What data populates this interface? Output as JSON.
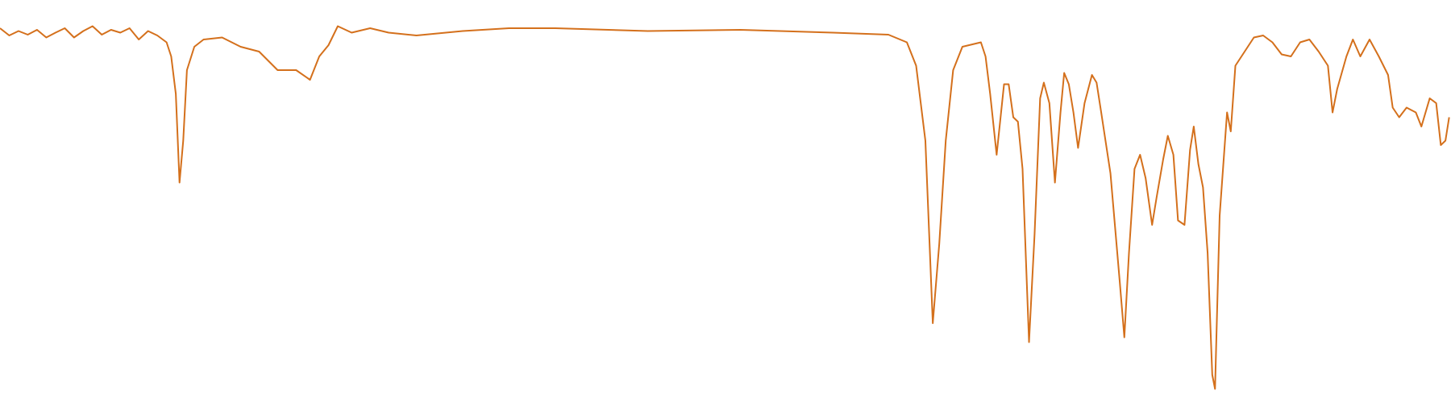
{
  "chart_data": {
    "type": "line",
    "color": "#d4701c",
    "xlim": [
      0,
      1568
    ],
    "ylim": [
      0,
      100
    ],
    "x": [
      0,
      10,
      20,
      30,
      40,
      50,
      60,
      70,
      80,
      90,
      100,
      110,
      120,
      130,
      140,
      150,
      160,
      170,
      180,
      185,
      190,
      194,
      198,
      202,
      210,
      220,
      240,
      260,
      280,
      300,
      320,
      335,
      345,
      355,
      365,
      380,
      400,
      420,
      450,
      500,
      550,
      600,
      700,
      800,
      900,
      960,
      980,
      990,
      1000,
      1008,
      1015,
      1022,
      1030,
      1040,
      1060,
      1065,
      1070,
      1077,
      1085,
      1090,
      1095,
      1100,
      1105,
      1112,
      1118,
      1124,
      1128,
      1134,
      1140,
      1146,
      1150,
      1155,
      1160,
      1165,
      1172,
      1180,
      1185,
      1190,
      1200,
      1210,
      1215,
      1220,
      1226,
      1232,
      1238,
      1245,
      1250,
      1257,
      1262,
      1268,
      1273,
      1280,
      1286,
      1290,
      1295,
      1300,
      1305,
      1310,
      1313,
      1318,
      1326,
      1330,
      1335,
      1345,
      1355,
      1365,
      1375,
      1385,
      1395,
      1405,
      1415,
      1425,
      1435,
      1440,
      1445,
      1455,
      1462,
      1470,
      1480,
      1490,
      1500,
      1505,
      1512,
      1520,
      1530,
      1536,
      1545,
      1552,
      1557,
      1562,
      1566
    ],
    "values": [
      93.0,
      91.2,
      92.3,
      91.4,
      92.6,
      90.7,
      91.9,
      93.0,
      90.7,
      92.3,
      93.5,
      91.4,
      92.6,
      91.9,
      93.0,
      90.2,
      92.3,
      91.2,
      89.5,
      86.0,
      76.7,
      54.7,
      65.1,
      82.6,
      88.4,
      90.2,
      90.7,
      88.4,
      87.2,
      82.6,
      82.6,
      80.2,
      86.0,
      88.8,
      93.5,
      91.9,
      93.0,
      91.9,
      91.2,
      92.3,
      93.0,
      93.0,
      92.3,
      92.6,
      91.9,
      91.4,
      89.5,
      83.7,
      65.1,
      19.8,
      39.5,
      65.1,
      82.6,
      88.4,
      89.5,
      86.0,
      76.7,
      61.6,
      79.1,
      79.1,
      70.9,
      69.8,
      58.1,
      15.1,
      41.9,
      75.6,
      79.5,
      74.4,
      54.7,
      72.1,
      81.9,
      79.1,
      72.1,
      63.3,
      74.4,
      81.4,
      79.5,
      72.1,
      57.0,
      30.2,
      16.3,
      37.2,
      58.1,
      61.6,
      55.8,
      44.2,
      51.2,
      60.5,
      66.3,
      61.6,
      45.3,
      44.2,
      62.8,
      68.6,
      59.3,
      53.5,
      37.2,
      7.0,
      3.5,
      46.5,
      72.1,
      67.4,
      83.7,
      87.2,
      90.7,
      91.2,
      89.5,
      86.5,
      86.0,
      89.5,
      90.2,
      87.2,
      83.7,
      72.1,
      77.9,
      86.0,
      90.2,
      86.0,
      90.2,
      86.0,
      81.4,
      73.3,
      70.9,
      73.3,
      72.1,
      68.6,
      75.6,
      74.4,
      64.0,
      65.1,
      70.9
    ]
  }
}
